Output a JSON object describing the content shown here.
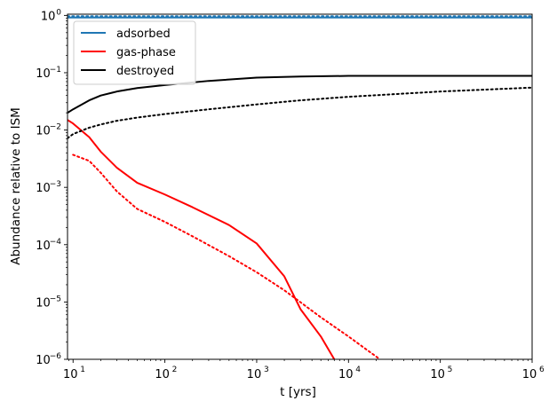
{
  "chart_data": {
    "type": "line",
    "xscale": "log",
    "yscale": "log",
    "xlim": [
      8.7,
      1000000
    ],
    "ylim": [
      1e-06,
      1.05
    ],
    "xlabel": "t [yrs]",
    "ylabel": "Abundance relative to ISM",
    "x_ticks": [
      {
        "value": 10,
        "base": "10",
        "exp": "1"
      },
      {
        "value": 100,
        "base": "10",
        "exp": "2"
      },
      {
        "value": 1000,
        "base": "10",
        "exp": "3"
      },
      {
        "value": 10000,
        "base": "10",
        "exp": "4"
      },
      {
        "value": 100000,
        "base": "10",
        "exp": "5"
      },
      {
        "value": 1000000,
        "base": "10",
        "exp": "6"
      }
    ],
    "y_ticks": [
      {
        "value": 1e-06,
        "base": "10",
        "exp": "−6"
      },
      {
        "value": 1e-05,
        "base": "10",
        "exp": "−5"
      },
      {
        "value": 0.0001,
        "base": "10",
        "exp": "−4"
      },
      {
        "value": 0.001,
        "base": "10",
        "exp": "−3"
      },
      {
        "value": 0.01,
        "base": "10",
        "exp": "−2"
      },
      {
        "value": 0.1,
        "base": "10",
        "exp": "−1"
      },
      {
        "value": 1,
        "base": "10",
        "exp": "0"
      }
    ],
    "legend": {
      "position": "top-left"
    },
    "series": [
      {
        "name": "adsorbed",
        "color": "#1f77b4",
        "style": "solid",
        "x": [
          8.7,
          1000000
        ],
        "y": [
          0.92,
          0.92
        ]
      },
      {
        "name": "",
        "color": "#1f77b4",
        "style": "dotted",
        "x": [
          8.7,
          1000000
        ],
        "y": [
          0.97,
          0.97
        ]
      },
      {
        "name": "gas-phase",
        "color": "#ff0000",
        "style": "solid",
        "x": [
          8.7,
          10,
          15,
          20,
          30,
          50,
          100,
          200,
          500,
          1000,
          2000,
          3000,
          5000,
          7000
        ],
        "y": [
          0.015,
          0.013,
          0.0075,
          0.0042,
          0.0022,
          0.0012,
          0.00075,
          0.00045,
          0.00022,
          0.000105,
          2.8e-05,
          7.5e-06,
          2.5e-06,
          1e-06
        ]
      },
      {
        "name": "",
        "color": "#ff0000",
        "style": "dotted",
        "x": [
          10,
          15,
          20,
          30,
          50,
          100,
          200,
          500,
          1000,
          2000,
          5000,
          10000,
          22000
        ],
        "y": [
          0.0037,
          0.0029,
          0.0018,
          0.00085,
          0.00042,
          0.00025,
          0.00014,
          6.3e-05,
          3.3e-05,
          1.6e-05,
          5.4e-06,
          2.5e-06,
          1e-06
        ]
      },
      {
        "name": "destroyed",
        "color": "#000000",
        "style": "solid",
        "x": [
          8.7,
          10,
          15,
          20,
          30,
          50,
          100,
          300,
          1000,
          3000,
          10000,
          100000,
          1000000
        ],
        "y": [
          0.02,
          0.023,
          0.033,
          0.04,
          0.047,
          0.054,
          0.061,
          0.072,
          0.082,
          0.086,
          0.088,
          0.088,
          0.088
        ]
      },
      {
        "name": "",
        "color": "#000000",
        "style": "dotted",
        "x": [
          8.7,
          10,
          15,
          20,
          30,
          50,
          100,
          300,
          1000,
          3000,
          10000,
          100000,
          1000000
        ],
        "y": [
          0.0072,
          0.0085,
          0.011,
          0.0125,
          0.0145,
          0.0165,
          0.019,
          0.023,
          0.028,
          0.033,
          0.038,
          0.047,
          0.055
        ]
      }
    ]
  }
}
